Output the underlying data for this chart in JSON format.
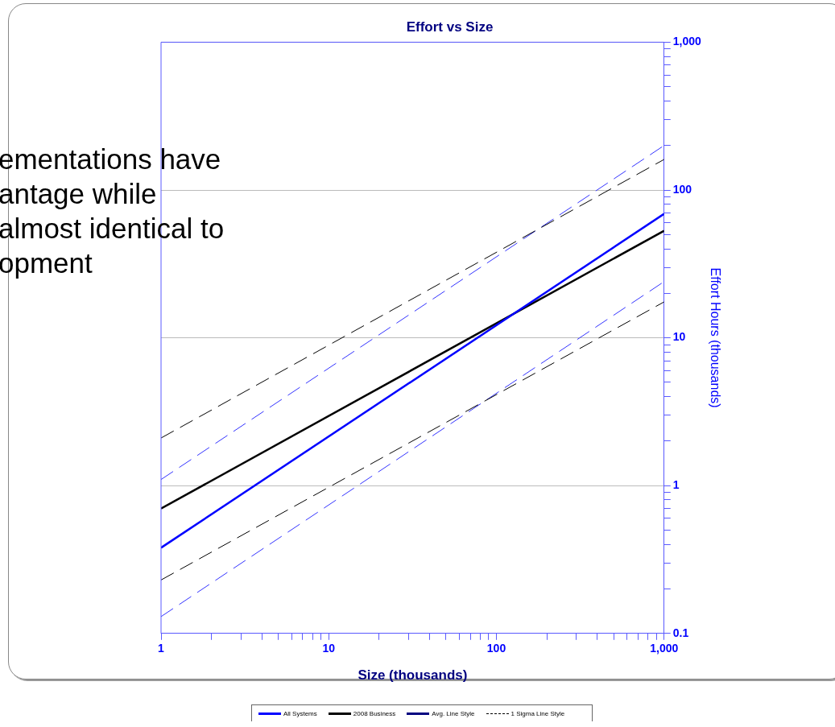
{
  "chart_data": {
    "type": "line",
    "title": "Effort vs Size",
    "xlabel": "Size (thousands)",
    "ylabel": "Effort Hours (thousands)",
    "log": "xy",
    "grid": "y",
    "legend": "bottom",
    "marker": "none",
    "x": [
      1,
      1000
    ],
    "xlim": [
      1,
      1000
    ],
    "xticks": [
      1,
      {
        "value": 2,
        "label": null
      },
      {
        "value": 3,
        "label": null
      },
      {
        "value": 4,
        "label": null
      },
      {
        "value": 5,
        "label": null
      },
      {
        "value": 6,
        "label": null
      },
      {
        "value": 7,
        "label": null
      },
      {
        "value": 8,
        "label": null
      },
      {
        "value": 9,
        "label": null
      },
      10,
      {
        "value": 20,
        "label": null
      },
      {
        "value": 30,
        "label": null
      },
      {
        "value": 40,
        "label": null
      },
      {
        "value": 50,
        "label": null
      },
      {
        "value": 60,
        "label": null
      },
      {
        "value": 70,
        "label": null
      },
      {
        "value": 80,
        "label": null
      },
      {
        "value": 90,
        "label": null
      },
      100,
      {
        "value": 200,
        "label": null
      },
      {
        "value": 300,
        "label": null
      },
      {
        "value": 400,
        "label": null
      },
      {
        "value": 500,
        "label": null
      },
      {
        "value": 600,
        "label": null
      },
      {
        "value": 700,
        "label": null
      },
      {
        "value": 800,
        "label": null
      },
      {
        "value": 900,
        "label": null
      },
      {
        "value": 1000,
        "label": "1,000"
      }
    ],
    "ylim": [
      0.1,
      1000
    ],
    "yticks": [
      0.1,
      {
        "value": 0.2,
        "label": null
      },
      {
        "value": 0.3,
        "label": null
      },
      {
        "value": 0.4,
        "label": null
      },
      {
        "value": 0.5,
        "label": null
      },
      {
        "value": 0.6,
        "label": null
      },
      {
        "value": 0.7,
        "label": null
      },
      {
        "value": 0.8,
        "label": null
      },
      {
        "value": 0.9,
        "label": null
      },
      1,
      {
        "value": 2,
        "label": null
      },
      {
        "value": 3,
        "label": null
      },
      {
        "value": 4,
        "label": null
      },
      {
        "value": 5,
        "label": null
      },
      {
        "value": 6,
        "label": null
      },
      {
        "value": 7,
        "label": null
      },
      {
        "value": 8,
        "label": null
      },
      {
        "value": 9,
        "label": null
      },
      10,
      {
        "value": 20,
        "label": null
      },
      {
        "value": 30,
        "label": null
      },
      {
        "value": 40,
        "label": null
      },
      {
        "value": 50,
        "label": null
      },
      {
        "value": 60,
        "label": null
      },
      {
        "value": 70,
        "label": null
      },
      {
        "value": 80,
        "label": null
      },
      {
        "value": 90,
        "label": null
      },
      100,
      {
        "value": 200,
        "label": null
      },
      {
        "value": 300,
        "label": null
      },
      {
        "value": 400,
        "label": null
      },
      {
        "value": 500,
        "label": null
      },
      {
        "value": 600,
        "label": null
      },
      {
        "value": 700,
        "label": null
      },
      {
        "value": 800,
        "label": null
      },
      {
        "value": 900,
        "label": null
      },
      {
        "value": 1000,
        "label": "1,000"
      }
    ],
    "series": [
      {
        "name": "All Systems",
        "color": "#0000ff",
        "values": [
          0.38,
          69
        ]
      },
      {
        "name": "2008 Business",
        "color": "#000000",
        "values": [
          0.7,
          53
        ]
      },
      {
        "color": "#000000",
        "line_style": "dashed",
        "values": [
          2.1,
          161
        ]
      },
      {
        "color": "#3333ff",
        "line_style": "dashed",
        "values": [
          1.1,
          200
        ]
      },
      {
        "color": "#000000",
        "line_style": "dashed",
        "values": [
          0.23,
          17.5
        ]
      },
      {
        "color": "#3333ff",
        "line_style": "dashed",
        "values": [
          0.13,
          24
        ]
      }
    ],
    "annotations": [
      "ementations have",
      "antage while",
      "almost identical to",
      "opment",
      "Avg. Line Style",
      "1 Sigma Line Style"
    ]
  }
}
